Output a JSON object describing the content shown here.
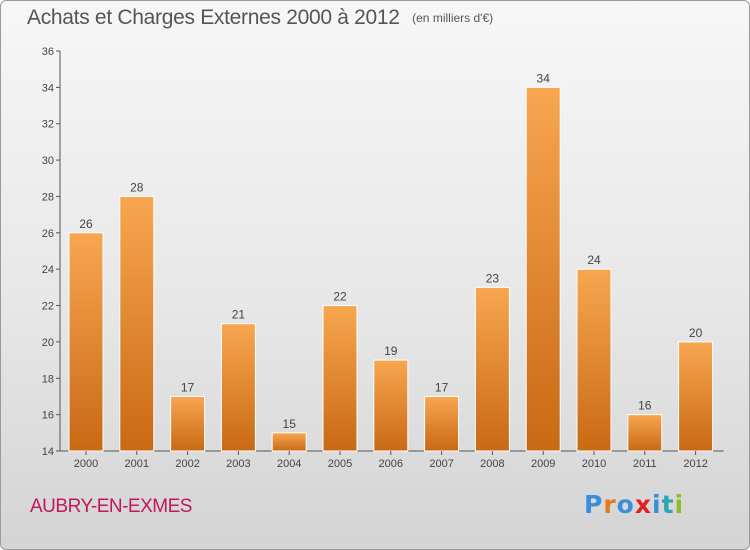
{
  "header": {
    "title": "Achats et Charges Externes 2000 à 2012",
    "subtitle": "(en milliers d'€)"
  },
  "footer": {
    "place": "AUBRY-EN-EXMES",
    "logo_text": "Proxiti",
    "logo_colors": [
      "#3a8fd8",
      "#e07a1c",
      "#3a8fd8",
      "#e02020",
      "#3a8fd8",
      "#2aa6b0",
      "#8bbf2a"
    ]
  },
  "colors": {
    "bar_top": "#f8a650",
    "bar_bottom": "#c96914",
    "axis": "#555555",
    "text": "#444444"
  },
  "chart_data": {
    "type": "bar",
    "title": "Achats et Charges Externes 2000 à 2012",
    "subtitle": "(en milliers d'€)",
    "categories": [
      "2000",
      "2001",
      "2002",
      "2003",
      "2004",
      "2005",
      "2006",
      "2007",
      "2008",
      "2009",
      "2010",
      "2011",
      "2012"
    ],
    "values": [
      26,
      28,
      17,
      21,
      15,
      22,
      19,
      17,
      23,
      34,
      24,
      16,
      20
    ],
    "ylim": [
      14,
      36
    ],
    "yticks": [
      "14",
      "16",
      "18",
      "20",
      "22",
      "24",
      "26",
      "28",
      "30",
      "32",
      "34",
      "36"
    ],
    "grid": false,
    "data_labels": true
  }
}
